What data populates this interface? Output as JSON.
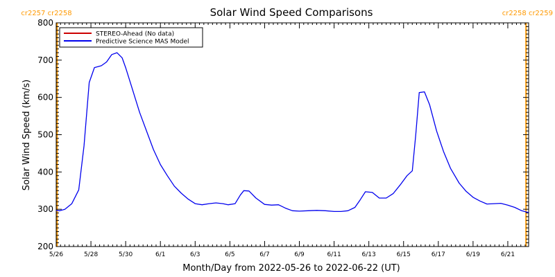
{
  "chart_data": {
    "type": "line",
    "title": "Solar Wind Speed Comparisons",
    "xlabel": "Month/Day from 2022-05-26 to 2022-06-22 (UT)",
    "ylabel": "Solar Wind Speed (km/s)",
    "ylim": [
      200,
      800
    ],
    "y_ticks": [
      200,
      300,
      400,
      500,
      600,
      700,
      800
    ],
    "x_range_days": [
      0,
      27.2
    ],
    "x_ticks": [
      {
        "day": 0,
        "label": "5/26"
      },
      {
        "day": 2,
        "label": "5/28"
      },
      {
        "day": 4,
        "label": "5/30"
      },
      {
        "day": 6,
        "label": "6/1"
      },
      {
        "day": 8,
        "label": "6/3"
      },
      {
        "day": 10,
        "label": "6/5"
      },
      {
        "day": 12,
        "label": "6/7"
      },
      {
        "day": 14,
        "label": "6/9"
      },
      {
        "day": 16,
        "label": "6/11"
      },
      {
        "day": 18,
        "label": "6/13"
      },
      {
        "day": 20,
        "label": "6/15"
      },
      {
        "day": 22,
        "label": "6/17"
      },
      {
        "day": 24,
        "label": "6/19"
      },
      {
        "day": 26,
        "label": "6/21"
      }
    ],
    "legend_position": "top-left",
    "legend": [
      {
        "label": "STEREO-Ahead (No data)",
        "color": "#cc0000"
      },
      {
        "label": "Predictive Science MAS Model",
        "color": "#0000ee"
      }
    ],
    "series": [
      {
        "name": "Predictive Science MAS Model",
        "color": "#0000ee",
        "x": [
          0.0,
          0.2,
          0.5,
          0.9,
          1.3,
          1.6,
          1.9,
          2.2,
          2.6,
          2.9,
          3.2,
          3.5,
          3.8,
          4.0,
          4.4,
          4.8,
          5.2,
          5.6,
          6.0,
          6.4,
          6.8,
          7.2,
          7.6,
          8.0,
          8.4,
          8.8,
          9.2,
          9.6,
          9.9,
          10.3,
          10.6,
          10.8,
          11.1,
          11.5,
          12.0,
          12.4,
          12.8,
          13.2,
          13.6,
          14.0,
          14.5,
          15.0,
          15.5,
          16.0,
          16.4,
          16.8,
          17.2,
          17.5,
          17.8,
          18.2,
          18.6,
          19.0,
          19.4,
          19.8,
          20.2,
          20.5,
          20.7,
          20.9,
          21.2,
          21.5,
          21.9,
          22.3,
          22.7,
          23.2,
          23.6,
          24.0,
          24.4,
          24.8,
          25.2,
          25.6,
          26.0,
          26.4,
          26.8,
          27.2
        ],
        "values": [
          297,
          296,
          300,
          315,
          352,
          470,
          640,
          680,
          685,
          695,
          715,
          720,
          706,
          680,
          620,
          560,
          510,
          460,
          420,
          390,
          362,
          343,
          327,
          315,
          312,
          315,
          317,
          315,
          312,
          315,
          338,
          350,
          349,
          330,
          313,
          311,
          312,
          303,
          296,
          295,
          296,
          297,
          296,
          294,
          294,
          296,
          305,
          325,
          347,
          345,
          330,
          330,
          342,
          365,
          390,
          403,
          500,
          613,
          615,
          580,
          510,
          455,
          410,
          370,
          348,
          332,
          322,
          314,
          315,
          316,
          311,
          305,
          296,
          291
        ]
      }
    ],
    "carrington_markers": [
      {
        "day": 0.05,
        "label": "cr2257 cr2258",
        "color": "#ff9900"
      },
      {
        "day": 27.05,
        "label": "cr2258 cr2259",
        "color": "#ff9900"
      }
    ]
  }
}
